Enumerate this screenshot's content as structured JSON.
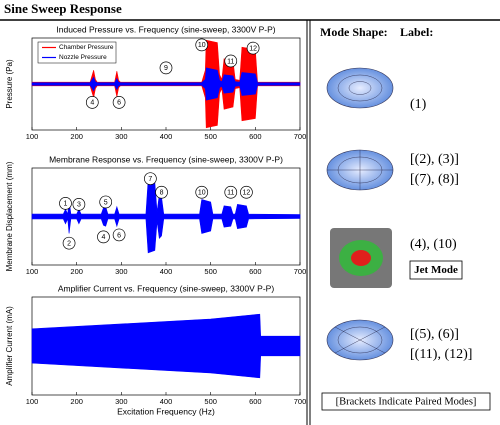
{
  "header": {
    "title": "Sine Sweep Response"
  },
  "chart_data": [
    {
      "type": "area",
      "title": "Induced Pressure vs. Frequency (sine-sweep, 3300V P-P)",
      "y_label": "Pressure (Pa)",
      "xlim": [
        100,
        700
      ],
      "xticks": [
        100,
        200,
        300,
        400,
        500,
        600,
        700
      ],
      "ylim": [
        -1,
        1
      ],
      "legend": "top-left",
      "series": [
        {
          "name": "Chamber Pressure",
          "color": "#ff0000",
          "x": [
            100,
            230,
            238,
            242,
            246,
            285,
            290,
            294,
            298,
            480,
            488,
            490,
            515,
            520,
            525,
            530,
            550,
            555,
            565,
            570,
            600,
            605,
            700
          ],
          "values": [
            0.04,
            0.04,
            0.3,
            0.1,
            0.04,
            0.04,
            0.28,
            0.08,
            0.04,
            0.04,
            0.3,
            0.95,
            0.9,
            0.2,
            0.1,
            0.55,
            0.5,
            0.1,
            0.08,
            0.8,
            0.75,
            0.04,
            0.04
          ]
        },
        {
          "name": "Nozzle Pressure",
          "color": "#0000ff",
          "x": [
            100,
            230,
            238,
            242,
            246,
            285,
            290,
            294,
            298,
            480,
            488,
            490,
            515,
            520,
            525,
            530,
            550,
            555,
            565,
            570,
            600,
            605,
            700
          ],
          "values": [
            0.03,
            0.03,
            0.15,
            0.05,
            0.03,
            0.03,
            0.12,
            0.04,
            0.03,
            0.03,
            0.1,
            0.35,
            0.3,
            0.08,
            0.05,
            0.2,
            0.18,
            0.05,
            0.04,
            0.25,
            0.22,
            0.03,
            0.03
          ]
        }
      ],
      "annotations": [
        {
          "text": "10",
          "x": 480,
          "y": 0.85
        },
        {
          "text": "11",
          "x": 545,
          "y": 0.5
        },
        {
          "text": "12",
          "x": 595,
          "y": 0.78
        },
        {
          "text": "9",
          "x": 400,
          "y": 0.35
        },
        {
          "text": "4",
          "x": 235,
          "y": -0.4
        },
        {
          "text": "6",
          "x": 295,
          "y": -0.4
        }
      ]
    },
    {
      "type": "area",
      "title": "Membrane Response vs. Frequency (sine-sweep, 3300V P-P)",
      "y_label": "Membrane Displacement (mm)",
      "xlim": [
        100,
        700
      ],
      "xticks": [
        100,
        200,
        300,
        400,
        500,
        600,
        700
      ],
      "ylim": [
        -1,
        1
      ],
      "series": [
        {
          "color": "#0000ff",
          "x": [
            100,
            170,
            175,
            180,
            183,
            187,
            200,
            205,
            210,
            255,
            260,
            265,
            270,
            285,
            290,
            295,
            355,
            360,
            375,
            380,
            385,
            390,
            395,
            475,
            480,
            500,
            505,
            525,
            530,
            545,
            550,
            555,
            560,
            580,
            585,
            700
          ],
          "values": [
            0.05,
            0.05,
            0.15,
            0.05,
            0.35,
            0.05,
            0.05,
            0.15,
            0.05,
            0.05,
            0.18,
            0.2,
            0.05,
            0.05,
            0.2,
            0.05,
            0.05,
            0.75,
            0.7,
            0.1,
            0.45,
            0.4,
            0.05,
            0.05,
            0.35,
            0.3,
            0.05,
            0.05,
            0.22,
            0.2,
            0.05,
            0.05,
            0.25,
            0.22,
            0.05,
            0.04
          ]
        }
      ],
      "annotations": [
        {
          "text": "1",
          "x": 175,
          "y": 0.27
        },
        {
          "text": "2",
          "x": 183,
          "y": -0.55
        },
        {
          "text": "3",
          "x": 205,
          "y": 0.25
        },
        {
          "text": "4",
          "x": 260,
          "y": -0.42
        },
        {
          "text": "5",
          "x": 265,
          "y": 0.3
        },
        {
          "text": "6",
          "x": 295,
          "y": -0.38
        },
        {
          "text": "7",
          "x": 365,
          "y": 0.78
        },
        {
          "text": "8",
          "x": 390,
          "y": 0.5
        },
        {
          "text": "10",
          "x": 480,
          "y": 0.5
        },
        {
          "text": "11",
          "x": 545,
          "y": 0.5
        },
        {
          "text": "12",
          "x": 580,
          "y": 0.5
        }
      ]
    },
    {
      "type": "area",
      "title": "Amplifier Current vs. Frequency (sine-sweep, 3300V P-P)",
      "y_label": "Amplifier Current (mA)",
      "x_label": "Excitation Frequency (Hz)",
      "xlim": [
        100,
        700
      ],
      "xticks": [
        100,
        200,
        300,
        400,
        500,
        600,
        700
      ],
      "ylim": [
        -1,
        1
      ],
      "series": [
        {
          "color": "#0000ff",
          "x": [
            100,
            300,
            500,
            610,
            612,
            700
          ],
          "values": [
            0.35,
            0.45,
            0.55,
            0.65,
            0.2,
            0.2
          ]
        }
      ]
    }
  ],
  "mode_panel": {
    "headers": [
      "Mode Shape:",
      "Label:"
    ],
    "rows": [
      {
        "labels": [
          "(1)"
        ]
      },
      {
        "labels": [
          "[(2), (3)]",
          "[(7), (8)]"
        ]
      },
      {
        "labels": [
          "(4), (10)"
        ],
        "tag": "Jet Mode"
      },
      {
        "labels": [
          "[(5), (6)]",
          "[(11), (12)]"
        ]
      }
    ],
    "footnote": "[Brackets Indicate Paired Modes]"
  }
}
